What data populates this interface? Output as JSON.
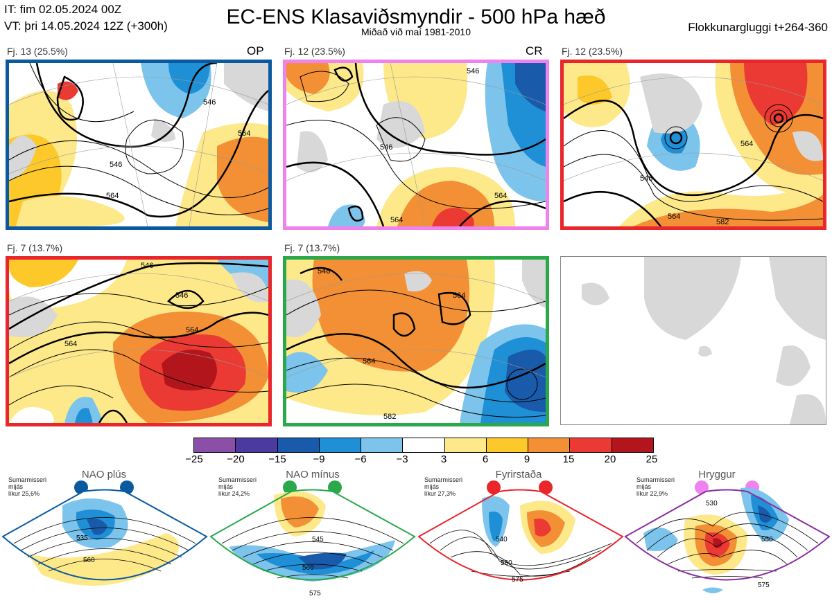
{
  "header": {
    "it_line": "IT: fim 02.05.2024 00Z",
    "vt_line": "VT: þri 14.05.2024 12Z  (+300h)",
    "title": "EC-ENS Klasaviðsmyndir - 500 hPa hæð",
    "subtitle": "Miðað við maí 1981-2010",
    "window": "Flokkunargluggi t+264-360"
  },
  "panels": [
    {
      "label": "Fj. 13 (25.5%)",
      "tag": "OP",
      "border": "#0b5aa0",
      "contours": [
        "546",
        "564",
        "546",
        "564"
      ]
    },
    {
      "label": "Fj. 12 (23.5%)",
      "tag": "CR",
      "border": "#ee82ee",
      "contours": [
        "546",
        "546",
        "564",
        "564"
      ]
    },
    {
      "label": "Fj. 12 (23.5%)",
      "tag": "",
      "border": "#e8262b",
      "contours": [
        "546",
        "564",
        "564",
        "582"
      ]
    },
    {
      "label": "Fj. 7 (13.7%)",
      "tag": "",
      "border": "#e8262b",
      "contours": [
        "546",
        "546",
        "564",
        "564"
      ]
    },
    {
      "label": "Fj. 7 (13.7%)",
      "tag": "",
      "border": "#2aa84a",
      "contours": [
        "546",
        "564",
        "564",
        "582"
      ]
    },
    {
      "label": "",
      "tag": "",
      "border": "#888888",
      "contours": []
    }
  ],
  "colorbar": {
    "ticks": [
      "−25",
      "−20",
      "−15",
      "−9",
      "−6",
      "−3",
      "3",
      "6",
      "9",
      "15",
      "20",
      "25"
    ],
    "colors": [
      "#8c4fa8",
      "#4b3aa0",
      "#1a5aaa",
      "#1f8fd6",
      "#7cc4ec",
      "#ffffff",
      "#fde98a",
      "#fdc92a",
      "#f39035",
      "#ea3a33",
      "#b2151b"
    ]
  },
  "regimes": [
    {
      "name": "NAO plús",
      "note1": "Sumarmisseri",
      "note2": "mijás",
      "note3": "líkur 25,6%",
      "color": "#0b5aa0",
      "contours": [
        "535",
        "560"
      ]
    },
    {
      "name": "NAO mínus",
      "note1": "Sumarmisseri",
      "note2": "mijás",
      "note3": "líkur 24,2%",
      "color": "#2aa84a",
      "contours": [
        "545",
        "560",
        "575"
      ]
    },
    {
      "name": "Fyrirstaða",
      "note1": "Sumarmisseri",
      "note2": "mijás",
      "note3": "líkur 27,3%",
      "color": "#e8262b",
      "contours": [
        "540",
        "560",
        "575"
      ]
    },
    {
      "name": "Hryggur",
      "note1": "Sumarmisseri",
      "note2": "mijás",
      "note3": "líkur 22,9%",
      "color": "#ee82ee",
      "contours": [
        "530",
        "550",
        "575"
      ]
    }
  ]
}
